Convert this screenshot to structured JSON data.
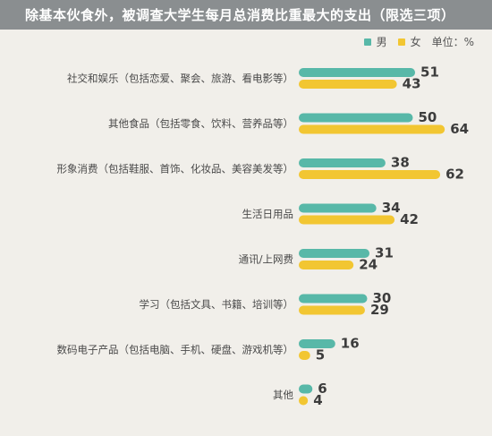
{
  "title": "除基本伙食外，被调查大学生每月总消费比重最大的支出（限选三项）",
  "legend": {
    "male": "男",
    "female": "女",
    "unit": "单位：%"
  },
  "colors": {
    "male": "#58b8a8",
    "female": "#f2c632",
    "title_bg": "#8a8e90",
    "background": "#f1efea"
  },
  "chart_data": {
    "type": "bar",
    "orientation": "horizontal",
    "title": "除基本伙食外，被调查大学生每月总消费比重最大的支出（限选三项）",
    "unit": "%",
    "categories": [
      "社交和娱乐（包括恋爱、聚会、旅游、看电影等）",
      "其他食品（包括零食、饮料、营养品等）",
      "形象消费（包括鞋服、首饰、化妆品、美容美发等）",
      "生活日用品",
      "通讯/上网费",
      "学习（包括文具、书籍、培训等）",
      "数码电子产品（包括电脑、手机、硬盘、游戏机等）",
      "其他"
    ],
    "series": [
      {
        "name": "男",
        "values": [
          51,
          50,
          38,
          34,
          31,
          30,
          16,
          6
        ]
      },
      {
        "name": "女",
        "values": [
          43,
          64,
          62,
          42,
          24,
          29,
          5,
          4
        ]
      }
    ],
    "legend_position": "top-right",
    "grid": false
  }
}
